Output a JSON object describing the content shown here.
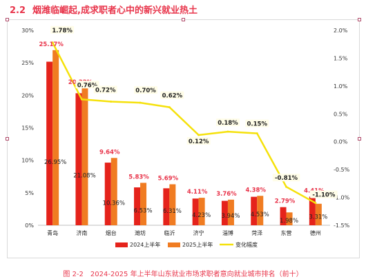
{
  "heading": {
    "number": "2.2",
    "text": "烟潍临崛起,成求职者心中的新兴就业热土"
  },
  "caption": "图 2-2　2024-2025 年上半年山东就业市场求职者意向就业城市排名（前十）",
  "colors": {
    "series2024": "#e5231b",
    "series2025": "#f07c22",
    "changeLine": "#f5e10a",
    "label2024": "#e8344a",
    "heading": "#e8344a"
  },
  "chart_data": {
    "type": "bar",
    "categories": [
      "青岛",
      "济南",
      "烟台",
      "潍坊",
      "临沂",
      "济宁",
      "淄博",
      "菏泽",
      "东营",
      "德州"
    ],
    "series": [
      {
        "name": "2024上半年",
        "values": [
          25.17,
          20.32,
          9.64,
          5.83,
          5.69,
          4.11,
          3.76,
          4.38,
          2.79,
          4.41
        ],
        "labels": [
          "25.17%",
          "20.32%",
          "9.64%",
          "5.83%",
          "5.69%",
          "4.11%",
          "3.76%",
          "4.38%",
          "2.79%",
          "4.41%"
        ]
      },
      {
        "name": "2025上半年",
        "values": [
          26.95,
          21.08,
          10.36,
          6.53,
          6.31,
          4.23,
          3.94,
          4.53,
          1.98,
          3.31
        ],
        "labels": [
          "26.95%",
          "21.08%",
          "10.36%",
          "6.53%",
          "6.31%",
          "4.23%",
          "3.94%",
          "4.53%",
          "1.98%",
          "3.31%"
        ]
      },
      {
        "name": "变化幅度",
        "type": "line",
        "axis": "right",
        "values": [
          1.78,
          0.76,
          0.72,
          0.7,
          0.62,
          0.12,
          0.18,
          0.15,
          -0.81,
          -1.1
        ],
        "labels": [
          "1.78%",
          "0.76%",
          "0.72%",
          "0.70%",
          "0.62%",
          "0.12%",
          "0.18%",
          "0.15%",
          "-0.81%",
          "-1.10%"
        ]
      }
    ],
    "y_left": {
      "min": 0,
      "max": 30,
      "ticks": [
        "0%",
        "5%",
        "10%",
        "15%",
        "20%",
        "25%",
        "30%"
      ]
    },
    "y_right": {
      "min": -1.5,
      "max": 2.0,
      "ticks": [
        "-1.5%",
        "-1.0%",
        "-0.5%",
        "0.0%",
        "0.5%",
        "1.0%",
        "1.5%",
        "2.0%"
      ]
    },
    "grid": false,
    "legend_position": "bottom",
    "legend": [
      "2024上半年",
      "2025上半年",
      "变化幅度"
    ]
  }
}
